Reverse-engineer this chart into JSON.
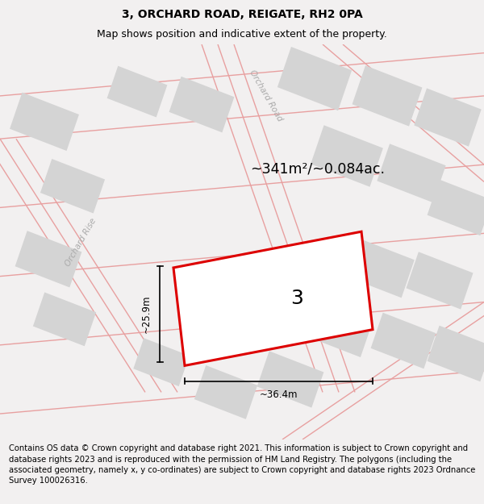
{
  "title": "3, ORCHARD ROAD, REIGATE, RH2 0PA",
  "subtitle": "Map shows position and indicative extent of the property.",
  "footer": "Contains OS data © Crown copyright and database right 2021. This information is subject to Crown copyright and database rights 2023 and is reproduced with the permission of HM Land Registry. The polygons (including the associated geometry, namely x, y co-ordinates) are subject to Crown copyright and database rights 2023 Ordnance Survey 100026316.",
  "area_label": "~341m²/~0.084ac.",
  "dim_width": "~36.4m",
  "dim_height": "~25.9m",
  "plot_number": "3",
  "bg_color": "#f2f0f0",
  "map_bg": "#f5f3f3",
  "plot_fill": "#ffffff",
  "plot_edge_color": "#dd0000",
  "building_fill": "#d4d4d4",
  "road_line_color": "#e8a0a0",
  "title_fontsize": 10,
  "subtitle_fontsize": 9,
  "footer_fontsize": 7.2,
  "road_label_color": "#aaaaaa"
}
